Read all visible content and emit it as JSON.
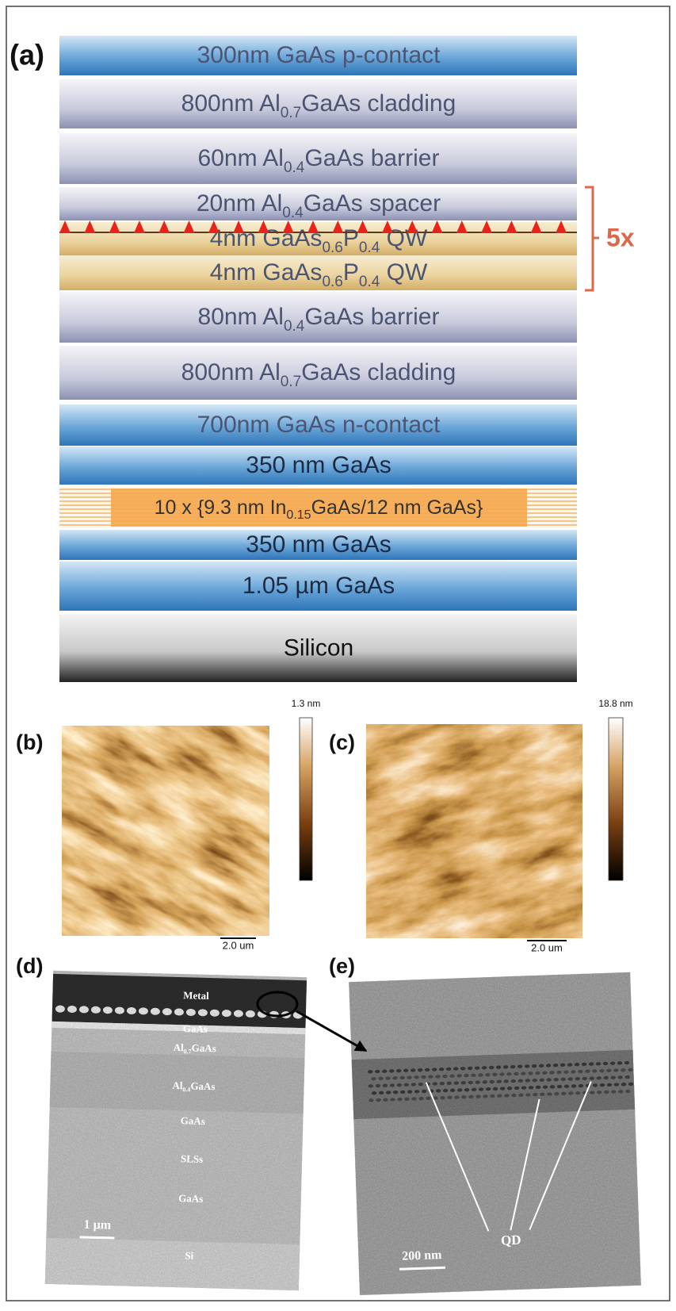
{
  "figure": {
    "a": {
      "label": "(a)",
      "repeat": "5x",
      "layers": [
        [
          "300nm GaAs p-contact"
        ],
        [
          "800nm Al",
          "0.7",
          "GaAs cladding"
        ],
        [
          "60nm Al",
          "0.4",
          "GaAs barrier"
        ],
        [
          "20nm Al",
          "0.4",
          "GaAs spacer"
        ],
        [
          "4nm GaAs",
          "0.6",
          "P",
          "0.4",
          " QW"
        ],
        [
          "4nm GaAs",
          "0.6",
          "P",
          "0.4",
          " QW"
        ],
        [
          "80nm Al",
          "0.4",
          "GaAs barrier"
        ],
        [
          "800nm Al",
          "0.7",
          "GaAs cladding"
        ],
        [
          "700nm GaAs n-contact"
        ],
        [
          "350 nm GaAs"
        ],
        [
          "10 x {9.3 nm In",
          "0.15",
          "GaAs/12 nm GaAs}"
        ],
        [
          "350 nm GaAs"
        ],
        [
          "1.05 µm GaAs"
        ],
        [
          "Silicon"
        ]
      ]
    },
    "b": {
      "label": "(b)",
      "colorbar_label": "1.3 nm",
      "scale_bar": "2.0 um"
    },
    "c": {
      "label": "(c)",
      "colorbar_label": "18.8 nm",
      "scale_bar": "2.0 um"
    },
    "d": {
      "label": "(d)",
      "scale_bar": "1 µm",
      "layer_labels": [
        [
          "Metal"
        ],
        [
          "GaAs"
        ],
        [
          "Al",
          "0.7",
          "GaAs"
        ],
        [
          "Al",
          "0.4",
          "GaAs"
        ],
        [
          "GaAs"
        ],
        [
          "SLSs"
        ],
        [
          "GaAs"
        ],
        [
          "Si"
        ]
      ]
    },
    "e": {
      "label": "(e)",
      "annotation": "QD",
      "scale_bar": "200 nm"
    }
  }
}
